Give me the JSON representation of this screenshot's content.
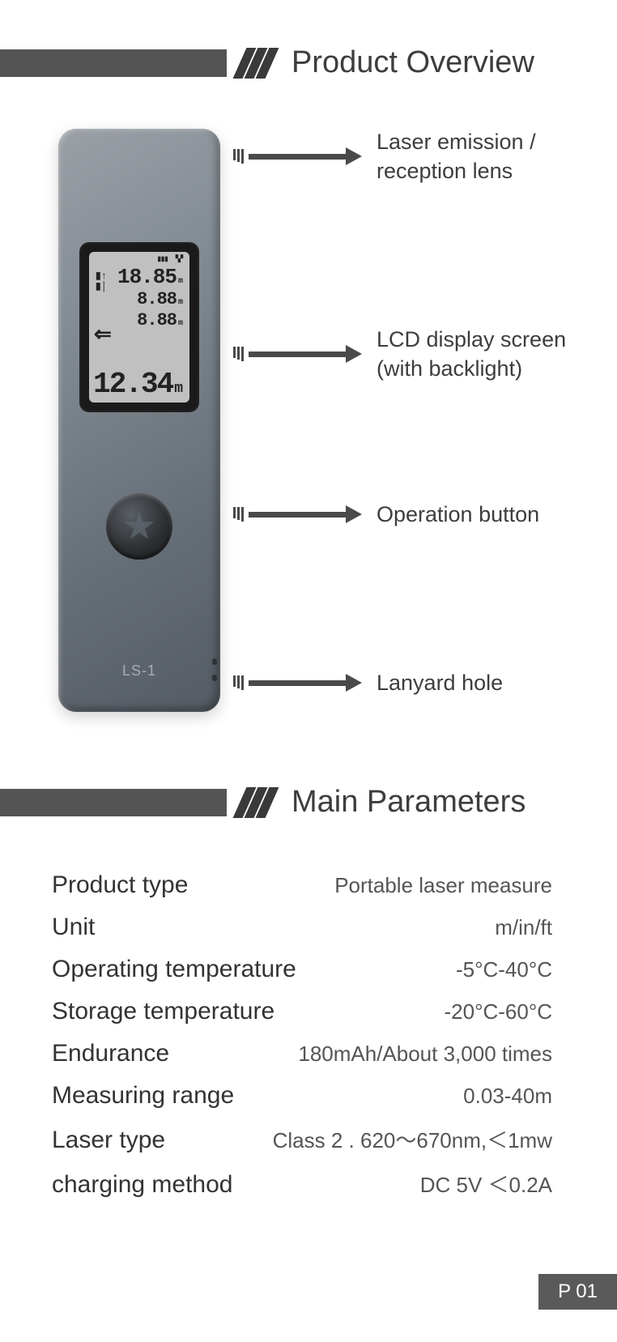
{
  "colors": {
    "heading_bar": "#545454",
    "chevron": "#3a3a3a",
    "text": "#3d3d3d",
    "arrow": "#4a4a4a",
    "device_body_top": "#9aa0a6",
    "device_body_bottom": "#545b63",
    "screen_frame": "#1a1a1a",
    "screen_bg": "#bfc0bf",
    "page_num_bg": "#5a5a5a"
  },
  "section1": {
    "title": "Product Overview"
  },
  "device": {
    "model": "LS-1",
    "display": {
      "line1": "18.85",
      "unit1": "m",
      "line2": "8.88",
      "unit2": "m",
      "line3": "8.88",
      "unit3": "m",
      "line4": "12.34",
      "unit4": "m"
    }
  },
  "callouts": {
    "c1": "Laser emission / reception lens",
    "c2": "LCD display screen (with backlight)",
    "c3": "Operation button",
    "c4": "Lanyard hole"
  },
  "section2": {
    "title": "Main Parameters"
  },
  "params": [
    {
      "label": "Product type",
      "value": "Portable laser measure"
    },
    {
      "label": "Unit",
      "value": "m/in/ft"
    },
    {
      "label": "Operating temperature",
      "value": "-5°C-40°C"
    },
    {
      "label": "Storage temperature",
      "value": "-20°C-60°C"
    },
    {
      "label": "Endurance",
      "value": "180mAh/About 3,000 times"
    },
    {
      "label": "Measuring range",
      "value": "0.03-40m"
    },
    {
      "label": "Laser type",
      "value": "Class 2 . 620～670nm,＜1mw"
    },
    {
      "label": "charging method",
      "value": "DC 5V ＜0.2A"
    }
  ],
  "page_num": "P 01"
}
